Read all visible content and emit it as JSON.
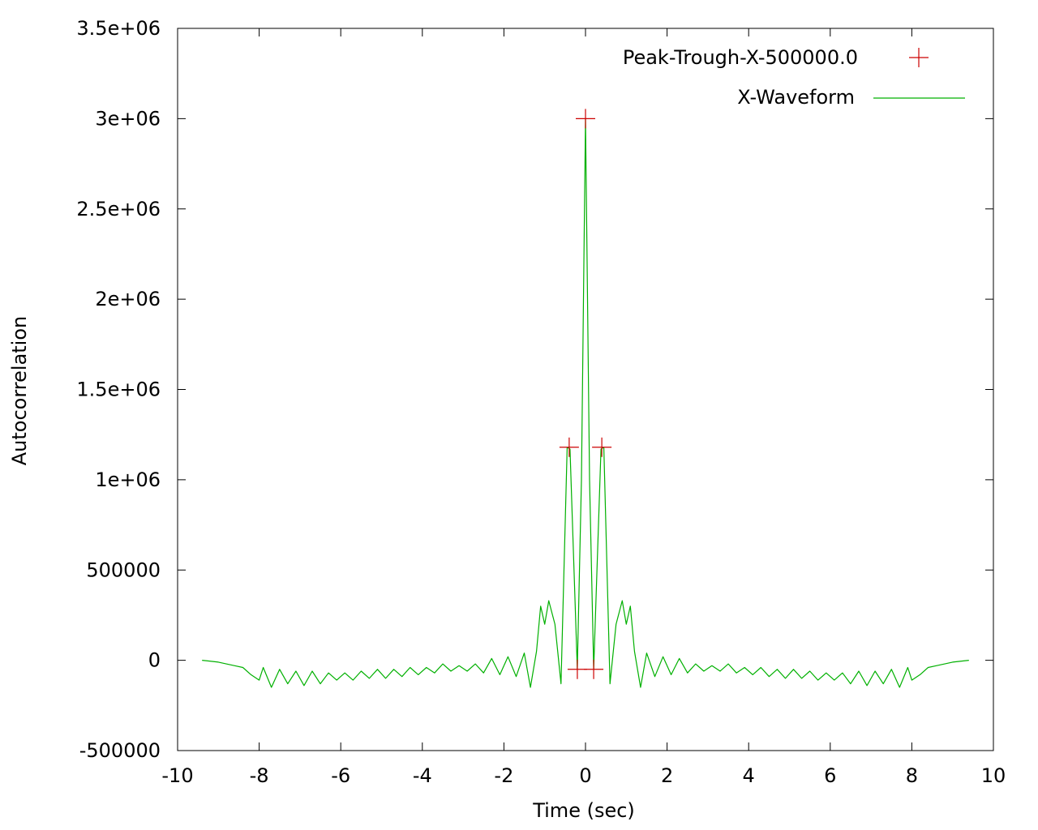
{
  "chart_data": {
    "type": "line",
    "xlabel": "Time (sec)",
    "ylabel": "Autocorrelation",
    "xlim": [
      -10,
      10
    ],
    "ylim": [
      -500000,
      3500000
    ],
    "xticks": [
      -10,
      -8,
      -6,
      -4,
      -2,
      0,
      2,
      4,
      6,
      8,
      10
    ],
    "yticks": [
      -500000,
      0,
      500000,
      1000000,
      1500000,
      2000000,
      2500000,
      3000000,
      3500000
    ],
    "xtick_labels": [
      "-10",
      "-8",
      "-6",
      "-4",
      "-2",
      "0",
      "2",
      "4",
      "6",
      "8",
      "10"
    ],
    "ytick_labels": [
      "-500000",
      "0",
      "500000",
      "1e+06",
      "1.5e+06",
      "2e+06",
      "2.5e+06",
      "3e+06",
      "3.5e+06"
    ],
    "grid": false,
    "legend_position": "top-right",
    "colors": {
      "waveform": "#00b000",
      "markers": "#cc0000",
      "frame": "#000000"
    },
    "series": [
      {
        "name": "Peak-Trough-X-500000.0",
        "kind": "points",
        "marker": "plus",
        "points": [
          {
            "x": 0.0,
            "y": 3000000
          },
          {
            "x": -0.4,
            "y": 1180000
          },
          {
            "x": 0.4,
            "y": 1180000
          },
          {
            "x": -0.2,
            "y": -50000
          },
          {
            "x": 0.2,
            "y": -50000
          }
        ]
      },
      {
        "name": "X-Waveform",
        "kind": "line",
        "points": [
          {
            "x": -9.4,
            "y": 0
          },
          {
            "x": -9.0,
            "y": -10000
          },
          {
            "x": -8.6,
            "y": -30000
          },
          {
            "x": -8.4,
            "y": -40000
          },
          {
            "x": -8.2,
            "y": -80000
          },
          {
            "x": -8.0,
            "y": -110000
          },
          {
            "x": -7.9,
            "y": -40000
          },
          {
            "x": -7.7,
            "y": -150000
          },
          {
            "x": -7.5,
            "y": -50000
          },
          {
            "x": -7.3,
            "y": -130000
          },
          {
            "x": -7.1,
            "y": -60000
          },
          {
            "x": -6.9,
            "y": -140000
          },
          {
            "x": -6.7,
            "y": -60000
          },
          {
            "x": -6.5,
            "y": -130000
          },
          {
            "x": -6.3,
            "y": -70000
          },
          {
            "x": -6.1,
            "y": -110000
          },
          {
            "x": -5.9,
            "y": -70000
          },
          {
            "x": -5.7,
            "y": -110000
          },
          {
            "x": -5.5,
            "y": -60000
          },
          {
            "x": -5.3,
            "y": -100000
          },
          {
            "x": -5.1,
            "y": -50000
          },
          {
            "x": -4.9,
            "y": -100000
          },
          {
            "x": -4.7,
            "y": -50000
          },
          {
            "x": -4.5,
            "y": -90000
          },
          {
            "x": -4.3,
            "y": -40000
          },
          {
            "x": -4.1,
            "y": -80000
          },
          {
            "x": -3.9,
            "y": -40000
          },
          {
            "x": -3.7,
            "y": -70000
          },
          {
            "x": -3.5,
            "y": -20000
          },
          {
            "x": -3.3,
            "y": -60000
          },
          {
            "x": -3.1,
            "y": -30000
          },
          {
            "x": -2.9,
            "y": -60000
          },
          {
            "x": -2.7,
            "y": -20000
          },
          {
            "x": -2.5,
            "y": -70000
          },
          {
            "x": -2.3,
            "y": 10000
          },
          {
            "x": -2.1,
            "y": -80000
          },
          {
            "x": -1.9,
            "y": 20000
          },
          {
            "x": -1.7,
            "y": -90000
          },
          {
            "x": -1.5,
            "y": 40000
          },
          {
            "x": -1.35,
            "y": -150000
          },
          {
            "x": -1.2,
            "y": 50000
          },
          {
            "x": -1.1,
            "y": 300000
          },
          {
            "x": -1.0,
            "y": 200000
          },
          {
            "x": -0.9,
            "y": 330000
          },
          {
            "x": -0.75,
            "y": 200000
          },
          {
            "x": -0.6,
            "y": -130000
          },
          {
            "x": -0.45,
            "y": 1180000
          },
          {
            "x": -0.38,
            "y": 1170000
          },
          {
            "x": -0.2,
            "y": -50000
          },
          {
            "x": -0.1,
            "y": 1000000
          },
          {
            "x": 0.0,
            "y": 3000000
          },
          {
            "x": 0.1,
            "y": 1000000
          },
          {
            "x": 0.2,
            "y": -50000
          },
          {
            "x": 0.38,
            "y": 1170000
          },
          {
            "x": 0.45,
            "y": 1180000
          },
          {
            "x": 0.6,
            "y": -130000
          },
          {
            "x": 0.75,
            "y": 200000
          },
          {
            "x": 0.9,
            "y": 330000
          },
          {
            "x": 1.0,
            "y": 200000
          },
          {
            "x": 1.1,
            "y": 300000
          },
          {
            "x": 1.2,
            "y": 50000
          },
          {
            "x": 1.35,
            "y": -150000
          },
          {
            "x": 1.5,
            "y": 40000
          },
          {
            "x": 1.7,
            "y": -90000
          },
          {
            "x": 1.9,
            "y": 20000
          },
          {
            "x": 2.1,
            "y": -80000
          },
          {
            "x": 2.3,
            "y": 10000
          },
          {
            "x": 2.5,
            "y": -70000
          },
          {
            "x": 2.7,
            "y": -20000
          },
          {
            "x": 2.9,
            "y": -60000
          },
          {
            "x": 3.1,
            "y": -30000
          },
          {
            "x": 3.3,
            "y": -60000
          },
          {
            "x": 3.5,
            "y": -20000
          },
          {
            "x": 3.7,
            "y": -70000
          },
          {
            "x": 3.9,
            "y": -40000
          },
          {
            "x": 4.1,
            "y": -80000
          },
          {
            "x": 4.3,
            "y": -40000
          },
          {
            "x": 4.5,
            "y": -90000
          },
          {
            "x": 4.7,
            "y": -50000
          },
          {
            "x": 4.9,
            "y": -100000
          },
          {
            "x": 5.1,
            "y": -50000
          },
          {
            "x": 5.3,
            "y": -100000
          },
          {
            "x": 5.5,
            "y": -60000
          },
          {
            "x": 5.7,
            "y": -110000
          },
          {
            "x": 5.9,
            "y": -70000
          },
          {
            "x": 6.1,
            "y": -110000
          },
          {
            "x": 6.3,
            "y": -70000
          },
          {
            "x": 6.5,
            "y": -130000
          },
          {
            "x": 6.7,
            "y": -60000
          },
          {
            "x": 6.9,
            "y": -140000
          },
          {
            "x": 7.1,
            "y": -60000
          },
          {
            "x": 7.3,
            "y": -130000
          },
          {
            "x": 7.5,
            "y": -50000
          },
          {
            "x": 7.7,
            "y": -150000
          },
          {
            "x": 7.9,
            "y": -40000
          },
          {
            "x": 8.0,
            "y": -110000
          },
          {
            "x": 8.2,
            "y": -80000
          },
          {
            "x": 8.4,
            "y": -40000
          },
          {
            "x": 8.6,
            "y": -30000
          },
          {
            "x": 9.0,
            "y": -10000
          },
          {
            "x": 9.4,
            "y": 0
          }
        ]
      }
    ]
  }
}
